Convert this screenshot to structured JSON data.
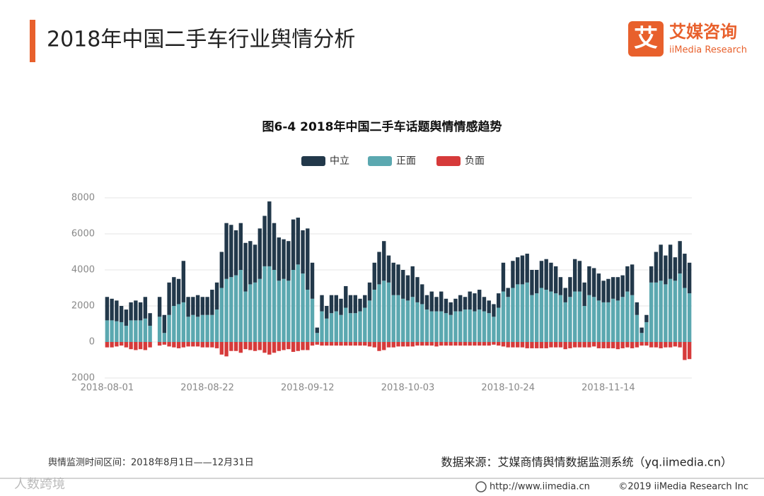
{
  "header": {
    "title": "2018年中国二手车行业舆情分析",
    "logo_mark": "艾",
    "logo_text": "艾媒咨询",
    "logo_sub": "iiMedia Research"
  },
  "chart_data": {
    "type": "bar",
    "stacked": true,
    "title": "图6-4  2018年中国二手车话题舆情情感趋势",
    "categories": [
      "2018-08-01",
      null,
      null,
      null,
      null,
      null,
      null,
      null,
      null,
      null,
      null,
      null,
      null,
      null,
      null,
      null,
      null,
      null,
      null,
      null,
      null,
      "2018-08-22",
      null,
      null,
      null,
      null,
      null,
      null,
      null,
      null,
      null,
      null,
      null,
      null,
      null,
      null,
      null,
      null,
      null,
      null,
      null,
      null,
      "2018-09-12",
      null,
      null,
      null,
      null,
      null,
      null,
      null,
      null,
      null,
      null,
      null,
      null,
      null,
      null,
      null,
      null,
      null,
      null,
      null,
      null,
      "2018-10-03",
      null,
      null,
      null,
      null,
      null,
      null,
      null,
      null,
      null,
      null,
      null,
      null,
      null,
      null,
      null,
      null,
      null,
      null,
      null,
      null,
      "2018-10-24",
      null,
      null,
      null,
      null,
      null,
      null,
      null,
      null,
      null,
      null,
      null,
      null,
      null,
      null,
      null,
      null,
      null,
      null,
      null,
      null,
      "2018-11-14",
      null,
      null,
      null,
      null,
      null,
      null,
      null,
      null,
      null,
      null,
      null,
      null,
      null,
      null,
      null,
      null,
      null
    ],
    "series": [
      {
        "name": "中立",
        "color": "#22384a",
        "values": [
          1300,
          1200,
          1150,
          900,
          900,
          1000,
          1100,
          1000,
          1200,
          700,
          null,
          1100,
          1000,
          1800,
          1600,
          1400,
          2300,
          1100,
          1000,
          1200,
          1000,
          1000,
          1400,
          1500,
          2000,
          3100,
          2900,
          2500,
          2600,
          2700,
          2400,
          2100,
          2800,
          2800,
          3600,
          2600,
          2400,
          2200,
          2200,
          2800,
          2600,
          2400,
          3400,
          2000,
          300,
          900,
          700,
          1000,
          900,
          900,
          1200,
          1000,
          1000,
          700,
          700,
          1000,
          1500,
          1800,
          2200,
          1500,
          1800,
          1700,
          1600,
          1400,
          1700,
          1400,
          1100,
          800,
          1100,
          800,
          1100,
          800,
          700,
          700,
          900,
          700,
          1000,
          1000,
          1100,
          800,
          700,
          700,
          800,
          1600,
          500,
          1500,
          1500,
          1600,
          1600,
          1400,
          1300,
          1500,
          1700,
          1600,
          1500,
          1000,
          800,
          1100,
          1800,
          1700,
          1300,
          1600,
          1600,
          1500,
          1200,
          1300,
          1200,
          1300,
          1200,
          1400,
          1700,
          700,
          300,
          400,
          900,
          1700,
          2000,
          1600,
          1900,
          1300,
          1800,
          1900,
          1700
        ]
      },
      {
        "name": "正面",
        "color": "#5ba8b0",
        "values": [
          1200,
          1200,
          1150,
          1100,
          900,
          1200,
          1200,
          1200,
          1300,
          900,
          null,
          1400,
          500,
          1500,
          2000,
          2100,
          2200,
          1400,
          1500,
          1400,
          1500,
          1500,
          1500,
          1800,
          3000,
          3500,
          3600,
          3700,
          4000,
          2800,
          3200,
          3300,
          3500,
          4200,
          4200,
          4000,
          3400,
          3500,
          3400,
          4000,
          4300,
          3800,
          2900,
          2400,
          500,
          1700,
          1300,
          1600,
          1700,
          1500,
          1900,
          1600,
          1600,
          1700,
          1900,
          2300,
          2900,
          3200,
          3400,
          3300,
          2600,
          2600,
          2400,
          2300,
          2500,
          2200,
          2100,
          1800,
          1700,
          1700,
          1700,
          1600,
          1500,
          1700,
          1700,
          1800,
          1800,
          1700,
          1800,
          1700,
          1600,
          1400,
          1900,
          2800,
          2500,
          3000,
          3200,
          3200,
          3300,
          2600,
          2700,
          3000,
          2900,
          2800,
          2700,
          2600,
          2200,
          2500,
          2800,
          2800,
          2000,
          2600,
          2500,
          2300,
          2200,
          2200,
          2400,
          2300,
          2500,
          2800,
          2600,
          1500,
          500,
          1100,
          3300,
          3300,
          3400,
          3200,
          3500,
          3400,
          3800,
          3000,
          2700
        ]
      },
      {
        "name": "负面",
        "color": "#d63a3a",
        "values": [
          -300,
          -300,
          -250,
          -200,
          -300,
          -400,
          -450,
          -400,
          -450,
          -300,
          null,
          -200,
          -150,
          -250,
          -300,
          -350,
          -300,
          -250,
          -250,
          -250,
          -300,
          -300,
          -300,
          -350,
          -700,
          -800,
          -500,
          -500,
          -600,
          -400,
          -450,
          -500,
          -450,
          -600,
          -700,
          -600,
          -500,
          -450,
          -400,
          -550,
          -500,
          -450,
          -450,
          -200,
          -150,
          -200,
          -200,
          -200,
          -200,
          -200,
          -200,
          -200,
          -200,
          -200,
          -200,
          -250,
          -300,
          -500,
          -450,
          -300,
          -300,
          -250,
          -250,
          -250,
          -250,
          -200,
          -200,
          -200,
          -200,
          -250,
          -200,
          -200,
          -200,
          -200,
          -200,
          -200,
          -200,
          -200,
          -200,
          -200,
          -200,
          -150,
          -200,
          -250,
          -300,
          -300,
          -300,
          -300,
          -350,
          -350,
          -350,
          -350,
          -350,
          -300,
          -300,
          -300,
          -400,
          -350,
          -300,
          -300,
          -300,
          -300,
          -250,
          -350,
          -350,
          -350,
          -350,
          -400,
          -350,
          -300,
          -350,
          -300,
          -200,
          -200,
          -300,
          -300,
          -350,
          -300,
          -300,
          -250,
          -300,
          -1000,
          -950
        ]
      }
    ],
    "ylim": [
      -2000,
      8000
    ],
    "yticks": [
      {
        "value": -2000,
        "label": "2000"
      },
      0,
      2000,
      4000,
      6000,
      8000
    ],
    "grid": true,
    "legend": "top"
  },
  "footer": {
    "period": "舆情监测时间区间：2018年8月1日——12月31日",
    "source": "数据来源：艾媒商情舆情数据监测系统（yq.iimedia.cn）",
    "url": "http://www.iimedia.cn",
    "copyright": "©2019  iiMedia Research  Inc",
    "watermark": "人数跨境"
  }
}
